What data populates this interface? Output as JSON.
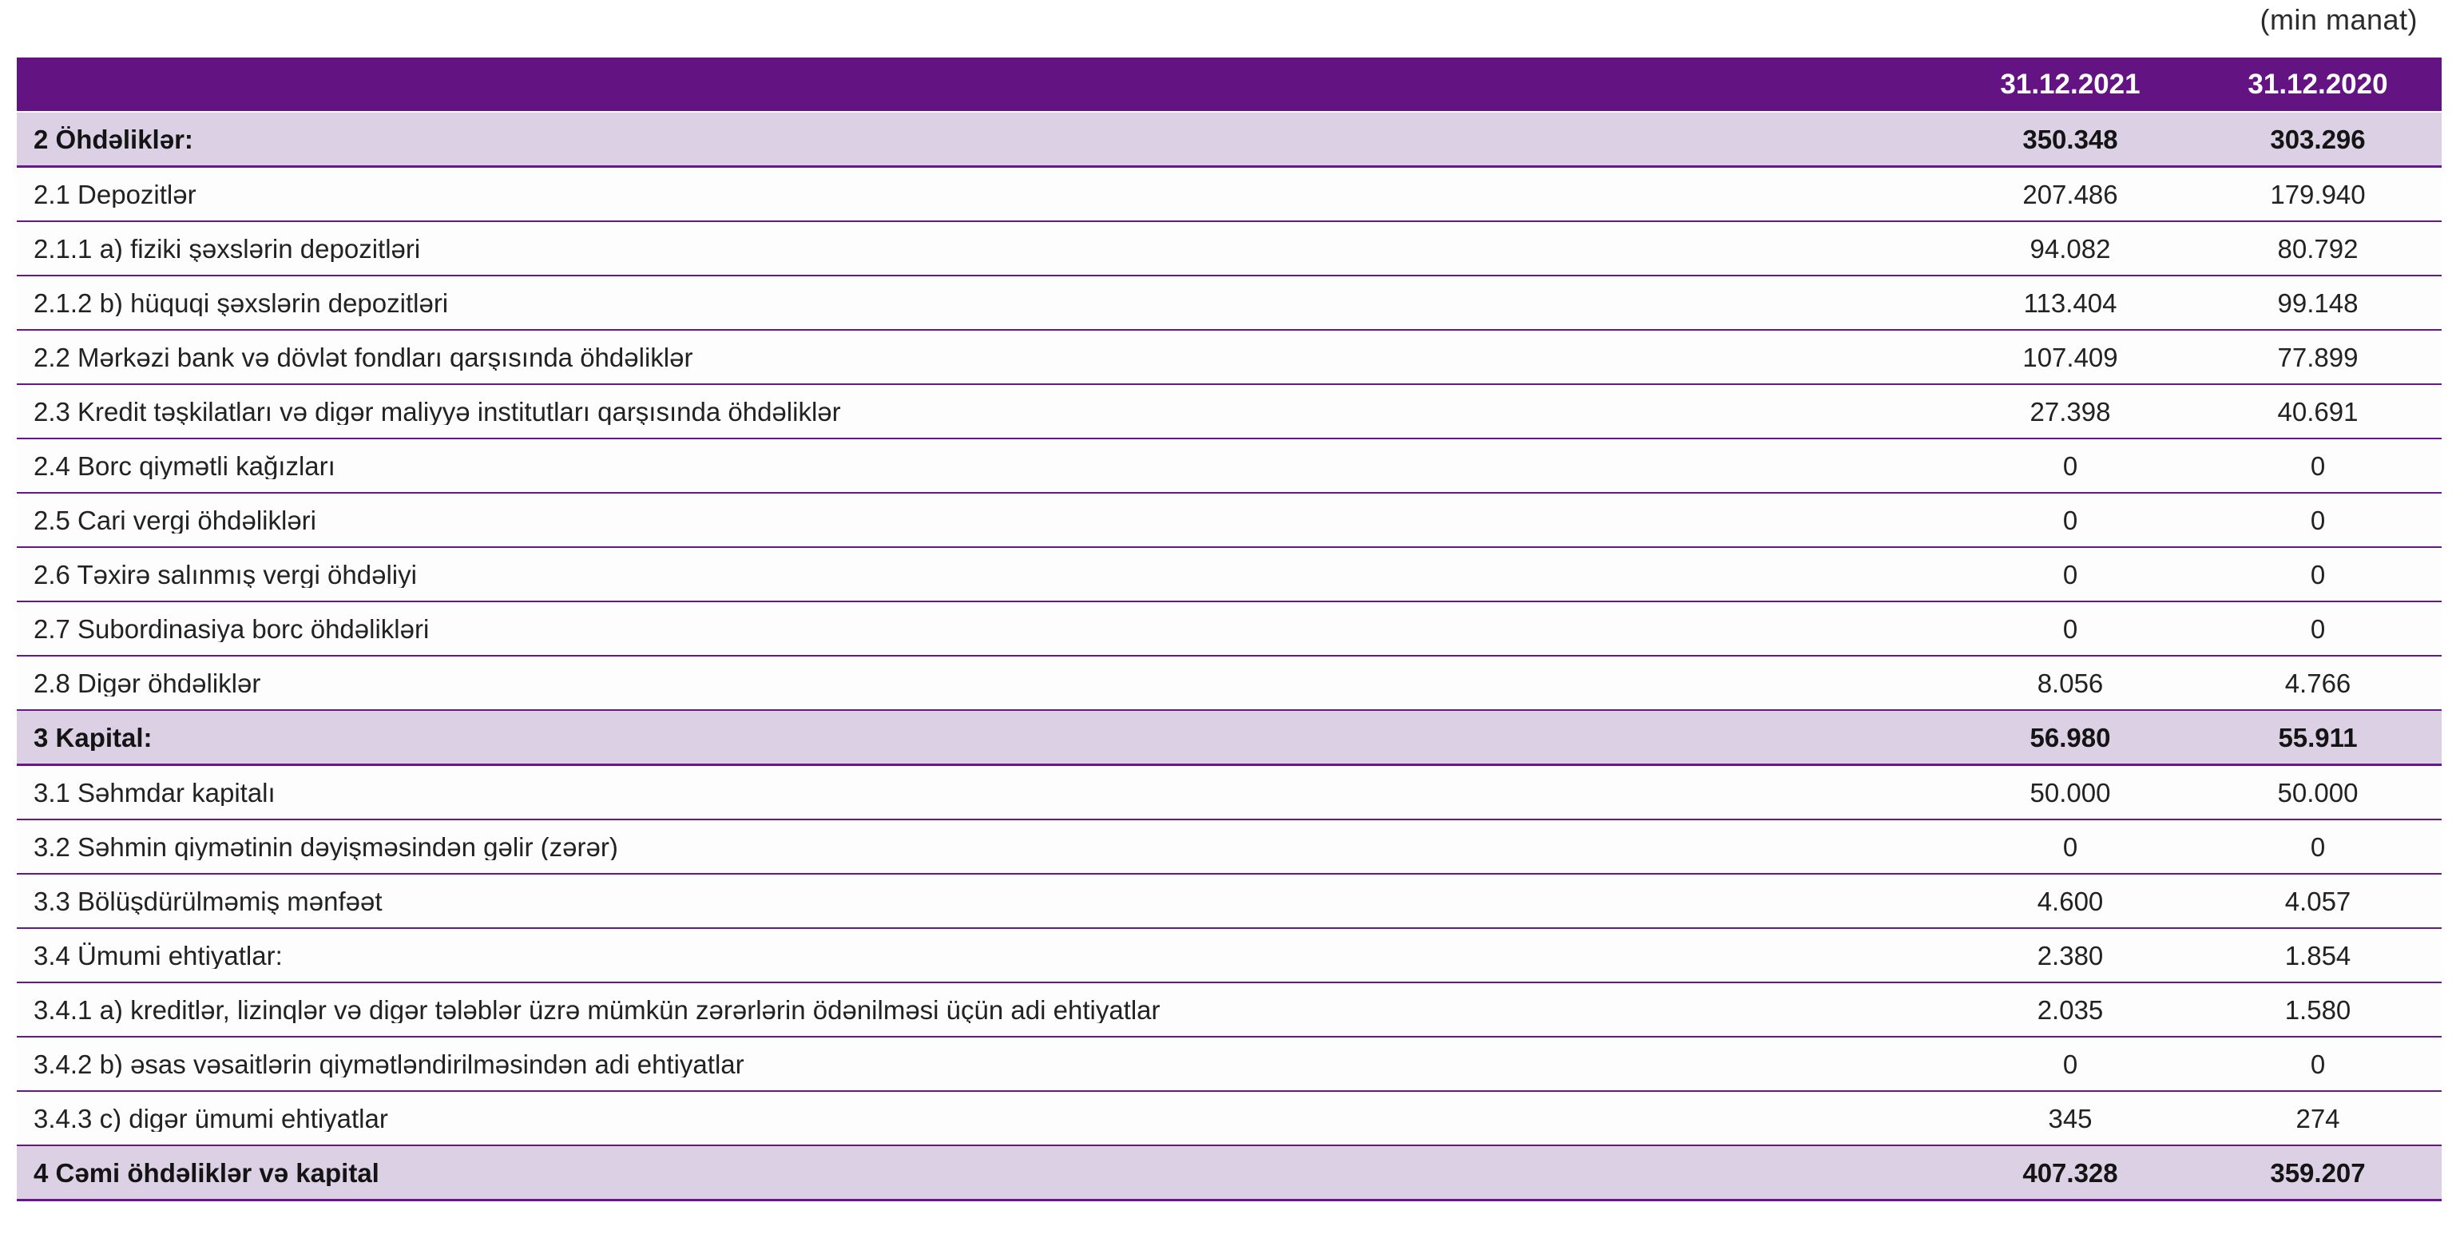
{
  "unit_note": "(min manat)",
  "colors": {
    "header_bg": "#641382",
    "section_row_bg": "#dcd0e5",
    "row_divider": "#671786",
    "header_text": "#ffffff",
    "body_text": "#222222"
  },
  "table": {
    "columns": [
      "31.12.2021",
      "31.12.2020"
    ],
    "rows": [
      {
        "label": "2 Öhdəliklər:",
        "values": [
          "350.348",
          "303.296"
        ],
        "emphasis": true
      },
      {
        "label": "2.1 Depozitlər",
        "values": [
          "207.486",
          "179.940"
        ],
        "emphasis": false
      },
      {
        "label": "2.1.1 a) fiziki şəxslərin depozitləri",
        "values": [
          "94.082",
          "80.792"
        ],
        "emphasis": false
      },
      {
        "label": "2.1.2 b) hüquqi şəxslərin depozitləri",
        "values": [
          "113.404",
          "99.148"
        ],
        "emphasis": false
      },
      {
        "label": "2.2 Mərkəzi bank və dövlət fondları qarşısında öhdəliklər",
        "values": [
          "107.409",
          "77.899"
        ],
        "emphasis": false
      },
      {
        "label": "2.3 Kredit təşkilatları və digər maliyyə institutları qarşısında öhdəliklər",
        "values": [
          "27.398",
          "40.691"
        ],
        "emphasis": false
      },
      {
        "label": "2.4 Borc qiymətli kağızları",
        "values": [
          "0",
          "0"
        ],
        "emphasis": false
      },
      {
        "label": "2.5 Cari vergi öhdəlikləri",
        "values": [
          "0",
          "0"
        ],
        "emphasis": false
      },
      {
        "label": "2.6 Təxirə salınmış vergi öhdəliyi",
        "values": [
          "0",
          "0"
        ],
        "emphasis": false
      },
      {
        "label": "2.7 Subordinasiya borc öhdəlikləri",
        "values": [
          "0",
          "0"
        ],
        "emphasis": false
      },
      {
        "label": "2.8 Digər öhdəliklər",
        "values": [
          "8.056",
          "4.766"
        ],
        "emphasis": false
      },
      {
        "label": "3 Kapital:",
        "values": [
          "56.980",
          "55.911"
        ],
        "emphasis": true
      },
      {
        "label": "3.1 Səhmdar kapitalı",
        "values": [
          "50.000",
          "50.000"
        ],
        "emphasis": false
      },
      {
        "label": "3.2 Səhmin qiymətinin dəyişməsindən gəlir (zərər)",
        "values": [
          "0",
          "0"
        ],
        "emphasis": false
      },
      {
        "label": "3.3 Bölüşdürülməmiş mənfəət",
        "values": [
          "4.600",
          "4.057"
        ],
        "emphasis": false
      },
      {
        "label": "3.4 Ümumi ehtiyatlar:",
        "values": [
          "2.380",
          "1.854"
        ],
        "emphasis": false
      },
      {
        "label": "3.4.1 a) kreditlər, lizinqlər və digər tələblər üzrə mümkün zərərlərin ödənilməsi üçün adi ehtiyatlar",
        "values": [
          "2.035",
          "1.580"
        ],
        "emphasis": false
      },
      {
        "label": "3.4.2 b) əsas vəsaitlərin qiymətləndirilməsindən adi ehtiyatlar",
        "values": [
          "0",
          "0"
        ],
        "emphasis": false
      },
      {
        "label": "3.4.3 c) digər ümumi ehtiyatlar",
        "values": [
          "345",
          "274"
        ],
        "emphasis": false
      },
      {
        "label": "4 Cəmi öhdəliklər və kapital",
        "values": [
          "407.328",
          "359.207"
        ],
        "emphasis": true
      }
    ]
  }
}
